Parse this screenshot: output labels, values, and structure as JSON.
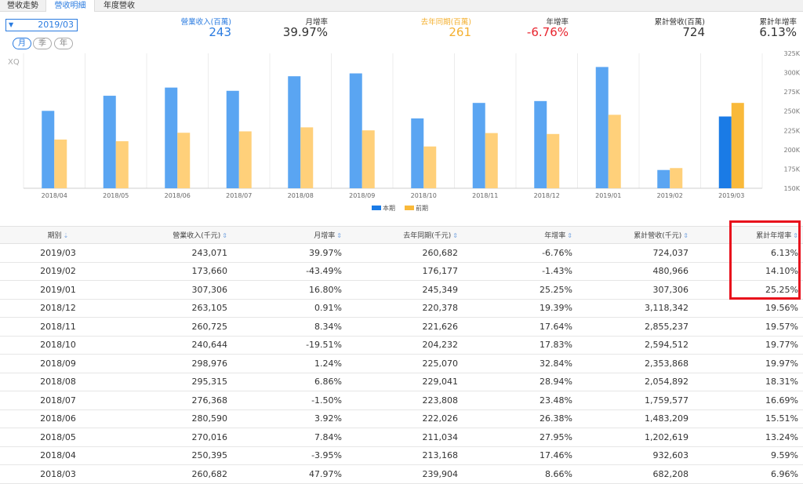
{
  "tabs": [
    "營收走勢",
    "營收明細",
    "年度營收"
  ],
  "active_tab": 1,
  "period_select": {
    "value": "2019/03"
  },
  "period_pills": [
    "月",
    "季",
    "年"
  ],
  "summary": [
    {
      "label": "營業收入(百萬)",
      "value": "243",
      "color": "#2a7be0"
    },
    {
      "label": "月增率",
      "value": "39.97%",
      "color": "#333333"
    },
    {
      "label": "去年同期(百萬)",
      "value": "261",
      "color": "#f4b030"
    },
    {
      "label": "年增率",
      "value": "-6.76%",
      "color": "#e8252f"
    },
    {
      "label": "累計營收(百萬)",
      "value": "724",
      "color": "#333333"
    },
    {
      "label": "累計年增率",
      "value": "6.13%",
      "color": "#333333"
    }
  ],
  "chart_watermark": "XQ",
  "chart_data": {
    "type": "bar",
    "categories": [
      "2018/04",
      "2018/05",
      "2018/06",
      "2018/07",
      "2018/08",
      "2018/09",
      "2018/10",
      "2018/11",
      "2018/12",
      "2019/01",
      "2019/02",
      "2019/03"
    ],
    "series": [
      {
        "name": "本期",
        "values": [
          250.4,
          270.0,
          280.6,
          276.4,
          295.3,
          299.0,
          240.6,
          260.7,
          263.1,
          307.3,
          173.7,
          243.1
        ]
      },
      {
        "name": "前期",
        "values": [
          213.2,
          211.0,
          222.0,
          223.8,
          229.0,
          225.1,
          204.2,
          221.6,
          220.4,
          245.3,
          176.2,
          260.7
        ]
      }
    ],
    "y_ticks": [
      "150K",
      "175K",
      "200K",
      "225K",
      "250K",
      "275K",
      "300K",
      "325K"
    ],
    "ylim": [
      150,
      325
    ],
    "colors": {
      "current": "#5aa5f2",
      "prior": "#ffd07a",
      "current_last": "#1a7be6",
      "prior_last": "#f9b93a"
    },
    "legend": [
      "本期",
      "前期"
    ]
  },
  "table": {
    "headers": [
      "期別",
      "營業收入(千元)",
      "月增率",
      "去年同期(千元)",
      "年增率",
      "累計營收(千元)",
      "累計年增率"
    ],
    "rows": [
      [
        "2019/03",
        "243,071",
        "39.97%",
        "260,682",
        "-6.76%",
        "724,037",
        "6.13%"
      ],
      [
        "2019/02",
        "173,660",
        "-43.49%",
        "176,177",
        "-1.43%",
        "480,966",
        "14.10%"
      ],
      [
        "2019/01",
        "307,306",
        "16.80%",
        "245,349",
        "25.25%",
        "307,306",
        "25.25%"
      ],
      [
        "2018/12",
        "263,105",
        "0.91%",
        "220,378",
        "19.39%",
        "3,118,342",
        "19.56%"
      ],
      [
        "2018/11",
        "260,725",
        "8.34%",
        "221,626",
        "17.64%",
        "2,855,237",
        "19.57%"
      ],
      [
        "2018/10",
        "240,644",
        "-19.51%",
        "204,232",
        "17.83%",
        "2,594,512",
        "19.77%"
      ],
      [
        "2018/09",
        "298,976",
        "1.24%",
        "225,070",
        "32.84%",
        "2,353,868",
        "19.97%"
      ],
      [
        "2018/08",
        "295,315",
        "6.86%",
        "229,041",
        "28.94%",
        "2,054,892",
        "18.31%"
      ],
      [
        "2018/07",
        "276,368",
        "-1.50%",
        "223,808",
        "23.48%",
        "1,759,577",
        "16.69%"
      ],
      [
        "2018/06",
        "280,590",
        "3.92%",
        "222,026",
        "26.38%",
        "1,483,209",
        "15.51%"
      ],
      [
        "2018/05",
        "270,016",
        "7.84%",
        "211,034",
        "27.95%",
        "1,202,619",
        "13.24%"
      ],
      [
        "2018/04",
        "250,395",
        "-3.95%",
        "213,168",
        "17.46%",
        "932,603",
        "9.59%"
      ],
      [
        "2018/03",
        "260,682",
        "47.97%",
        "239,904",
        "8.66%",
        "682,208",
        "6.96%"
      ]
    ]
  }
}
